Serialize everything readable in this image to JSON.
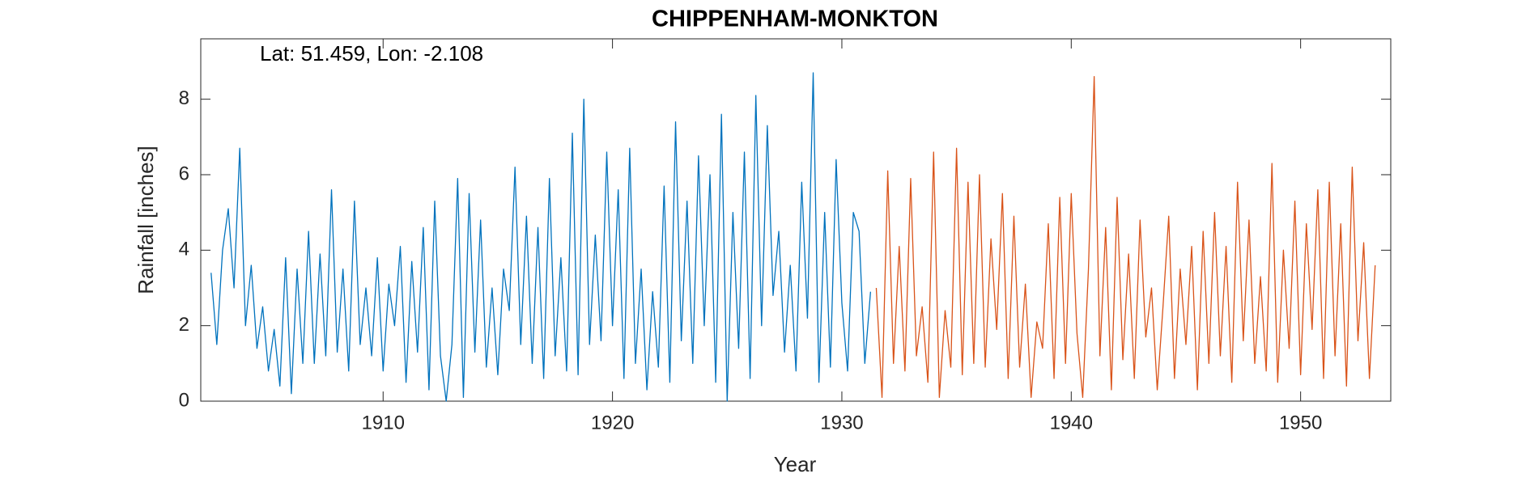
{
  "chart_data": {
    "type": "line",
    "title": "CHIPPENHAM-MONKTON",
    "annotation": "Lat: 51.459, Lon: -2.108",
    "xlabel": "Year",
    "ylabel": "Rainfall [inches]",
    "xlim": [
      1902.05,
      1953.93
    ],
    "ylim": [
      0,
      9.6
    ],
    "xticks": [
      1910,
      1920,
      1930,
      1940,
      1950
    ],
    "yticks": [
      0,
      2,
      4,
      6,
      8
    ],
    "grid": false,
    "series": [
      {
        "color": "#0072bd",
        "x": [
          1902.5,
          1902.75,
          1903,
          1903.25,
          1903.5,
          1903.75,
          1904,
          1904.25,
          1904.5,
          1904.75,
          1905,
          1905.25,
          1905.5,
          1905.75,
          1906,
          1906.25,
          1906.5,
          1906.75,
          1907,
          1907.25,
          1907.5,
          1907.75,
          1908,
          1908.25,
          1908.5,
          1908.75,
          1909,
          1909.25,
          1909.5,
          1909.75,
          1910,
          1910.25,
          1910.5,
          1910.75,
          1911,
          1911.25,
          1911.5,
          1911.75,
          1912,
          1912.25,
          1912.5,
          1912.75,
          1913,
          1913.25,
          1913.5,
          1913.75,
          1914,
          1914.25,
          1914.5,
          1914.75,
          1915,
          1915.25,
          1915.5,
          1915.75,
          1916,
          1916.25,
          1916.5,
          1916.75,
          1917,
          1917.25,
          1917.5,
          1917.75,
          1918,
          1918.25,
          1918.5,
          1918.75,
          1919,
          1919.25,
          1919.5,
          1919.75,
          1920,
          1920.25,
          1920.5,
          1920.75,
          1921,
          1921.25,
          1921.5,
          1921.75,
          1922,
          1922.25,
          1922.5,
          1922.75,
          1923,
          1923.25,
          1923.5,
          1923.75,
          1924,
          1924.25,
          1924.5,
          1924.75,
          1925,
          1925.25,
          1925.5,
          1925.75,
          1926,
          1926.25,
          1926.5,
          1926.75,
          1927,
          1927.25,
          1927.5,
          1927.75,
          1928,
          1928.25,
          1928.5,
          1928.75,
          1929,
          1929.25,
          1929.5,
          1929.75,
          1930,
          1930.25,
          1930.5,
          1930.75,
          1931,
          1931.25
        ],
        "values": [
          3.4,
          1.5,
          4.0,
          5.1,
          3.0,
          6.7,
          2.0,
          3.6,
          1.4,
          2.5,
          0.8,
          1.9,
          0.4,
          3.8,
          0.2,
          3.5,
          1.0,
          4.5,
          1.0,
          3.9,
          1.2,
          5.6,
          1.3,
          3.5,
          0.8,
          5.3,
          1.5,
          3.0,
          1.2,
          3.8,
          0.8,
          3.1,
          2.0,
          4.1,
          0.5,
          3.7,
          1.3,
          4.6,
          0.3,
          5.3,
          1.2,
          0.0,
          1.5,
          5.9,
          0.1,
          5.5,
          1.3,
          4.8,
          0.9,
          3.0,
          0.7,
          3.5,
          2.4,
          6.2,
          1.5,
          4.9,
          1.0,
          4.6,
          0.6,
          5.9,
          1.2,
          3.8,
          0.8,
          7.1,
          0.7,
          8.0,
          1.5,
          4.4,
          1.6,
          6.6,
          2.0,
          5.6,
          0.6,
          6.7,
          1.0,
          3.5,
          0.3,
          2.9,
          0.9,
          5.7,
          0.5,
          7.4,
          1.6,
          5.3,
          1.0,
          6.5,
          2.0,
          6.0,
          0.5,
          7.6,
          0.0,
          5.0,
          1.4,
          6.6,
          0.6,
          8.1,
          2.0,
          7.3,
          2.8,
          4.5,
          1.3,
          3.6,
          0.8,
          5.8,
          2.2,
          8.7,
          0.5,
          5.0,
          0.9,
          6.4,
          2.6,
          0.8,
          5.0,
          4.5,
          1.0,
          2.9
        ]
      },
      {
        "color": "#d95319",
        "x": [
          1931.5,
          1931.75,
          1932,
          1932.25,
          1932.5,
          1932.75,
          1933,
          1933.25,
          1933.5,
          1933.75,
          1934,
          1934.25,
          1934.5,
          1934.75,
          1935,
          1935.25,
          1935.5,
          1935.75,
          1936,
          1936.25,
          1936.5,
          1936.75,
          1937,
          1937.25,
          1937.5,
          1937.75,
          1938,
          1938.25,
          1938.5,
          1938.75,
          1939,
          1939.25,
          1939.5,
          1939.75,
          1940,
          1940.25,
          1940.5,
          1940.75,
          1941,
          1941.25,
          1941.5,
          1941.75,
          1942,
          1942.25,
          1942.5,
          1942.75,
          1943,
          1943.25,
          1943.5,
          1943.75,
          1944,
          1944.25,
          1944.5,
          1944.75,
          1945,
          1945.25,
          1945.5,
          1945.75,
          1946,
          1946.25,
          1946.5,
          1946.75,
          1947,
          1947.25,
          1947.5,
          1947.75,
          1948,
          1948.25,
          1948.5,
          1948.75,
          1949,
          1949.25,
          1949.5,
          1949.75,
          1950,
          1950.25,
          1950.5,
          1950.75,
          1951,
          1951.25,
          1951.5,
          1951.75,
          1952,
          1952.25,
          1952.5,
          1952.75,
          1953,
          1953.25
        ],
        "values": [
          3.0,
          0.1,
          6.1,
          1.0,
          4.1,
          0.8,
          5.9,
          1.2,
          2.5,
          0.5,
          6.6,
          0.1,
          2.4,
          0.9,
          6.7,
          0.7,
          5.8,
          1.0,
          6.0,
          0.9,
          4.3,
          1.9,
          5.5,
          0.6,
          4.9,
          0.9,
          3.1,
          0.1,
          2.1,
          1.4,
          4.7,
          0.6,
          5.4,
          1.0,
          5.5,
          1.8,
          0.1,
          3.5,
          8.6,
          1.2,
          4.6,
          0.3,
          5.4,
          1.1,
          3.9,
          0.6,
          4.8,
          1.7,
          3.0,
          0.3,
          2.5,
          4.9,
          0.6,
          3.5,
          1.5,
          4.1,
          0.3,
          4.5,
          1.0,
          5.0,
          1.2,
          4.1,
          0.5,
          5.8,
          1.6,
          4.8,
          1.0,
          3.3,
          0.8,
          6.3,
          0.5,
          4.0,
          1.4,
          5.3,
          0.7,
          4.7,
          1.9,
          5.6,
          0.6,
          5.8,
          1.2,
          4.7,
          0.4,
          6.2,
          1.6,
          4.2,
          0.6,
          3.6
        ]
      }
    ]
  }
}
